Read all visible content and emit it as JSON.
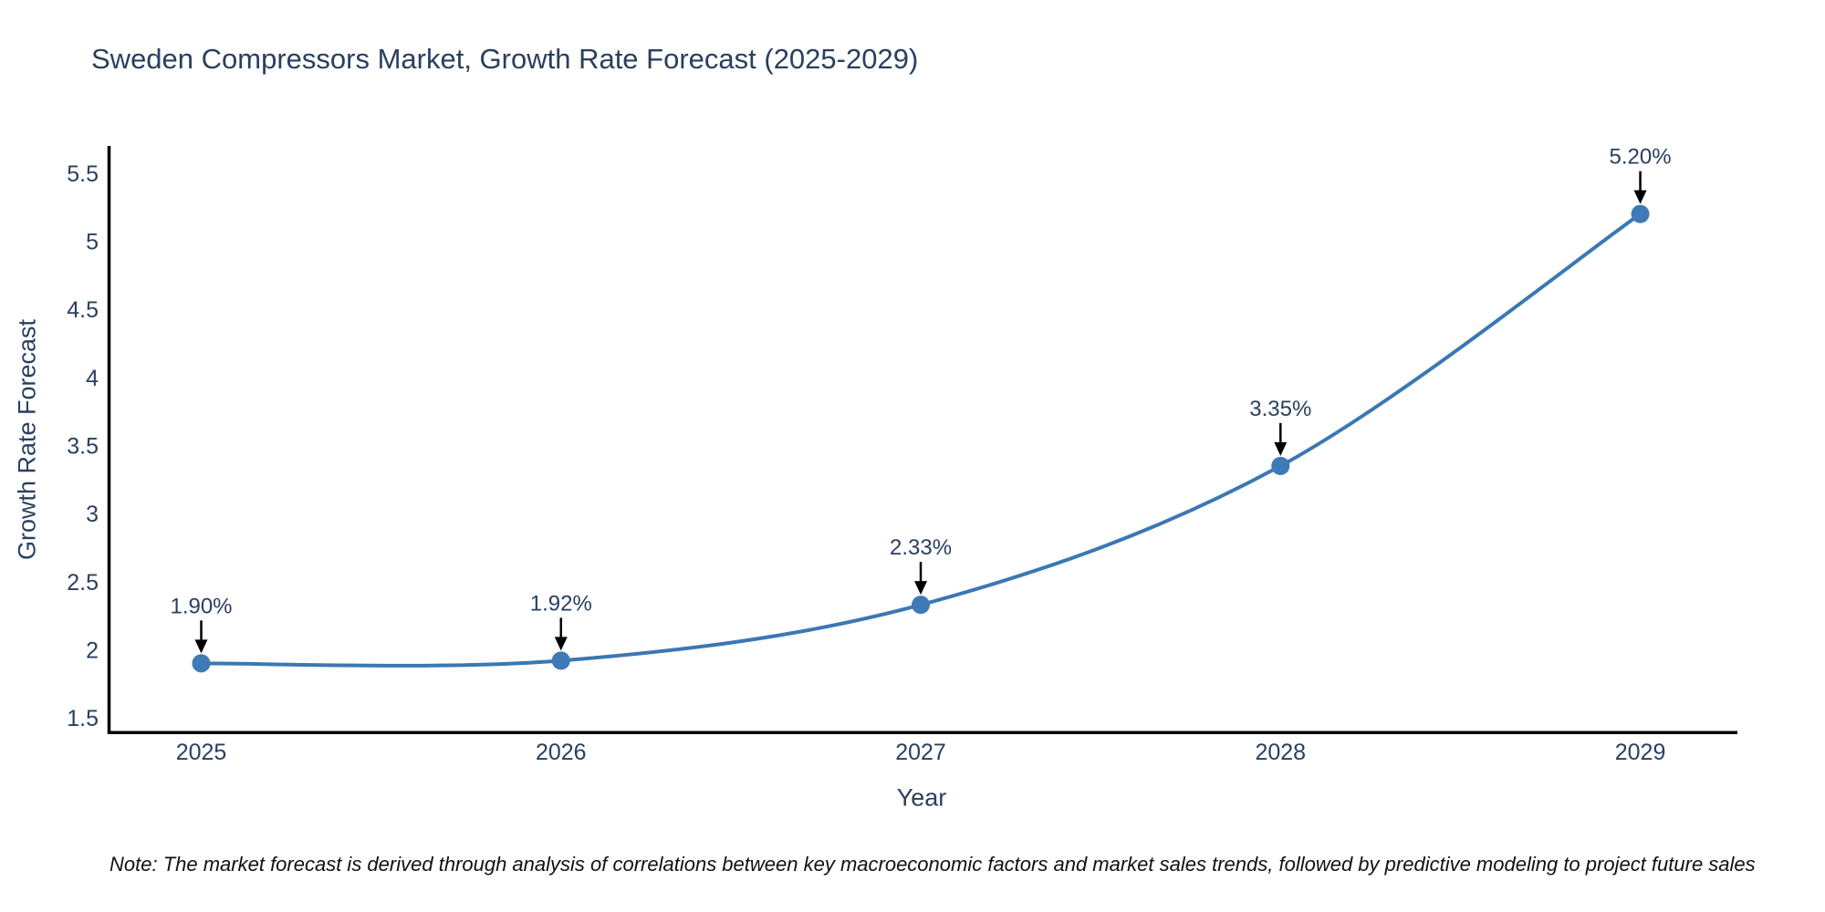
{
  "note": "Note: The market forecast is derived through analysis of correlations between key macroeconomic factors and market sales trends, followed by predictive modeling to project future sales",
  "chart_data": {
    "type": "line",
    "title": "Sweden Compressors Market, Growth Rate Forecast (2025-2029)",
    "xlabel": "Year",
    "ylabel": "Growth Rate Forecast",
    "x": [
      2025,
      2026,
      2027,
      2028,
      2029
    ],
    "series": [
      {
        "name": "Growth Rate Forecast",
        "values": [
          1.9,
          1.92,
          2.33,
          3.35,
          5.2
        ],
        "point_labels": [
          "1.90%",
          "1.92%",
          "2.33%",
          "3.35%",
          "5.20%"
        ]
      }
    ],
    "xtick_labels": [
      "2025",
      "2026",
      "2027",
      "2028",
      "2029"
    ],
    "ytick_values": [
      1.5,
      2,
      2.5,
      3,
      3.5,
      4,
      4.5,
      5,
      5.5
    ],
    "ytick_labels": [
      "1.5",
      "2",
      "2.5",
      "3",
      "3.5",
      "4",
      "4.5",
      "5",
      "5.5"
    ],
    "xlim": [
      2024.74,
      2029.27
    ],
    "ylim": [
      1.38,
      5.7
    ],
    "grid": false,
    "legend_position": "none",
    "line_shape": "spline",
    "colors": {
      "line": "#3a78b3",
      "marker": "#3d7ab6",
      "axis_line": "#000000",
      "tick_text": "#2a3f5f",
      "title_text": "#2a3f5f",
      "annotation_text": "#2a3f5f",
      "annotation_arrow": "#000000"
    }
  }
}
